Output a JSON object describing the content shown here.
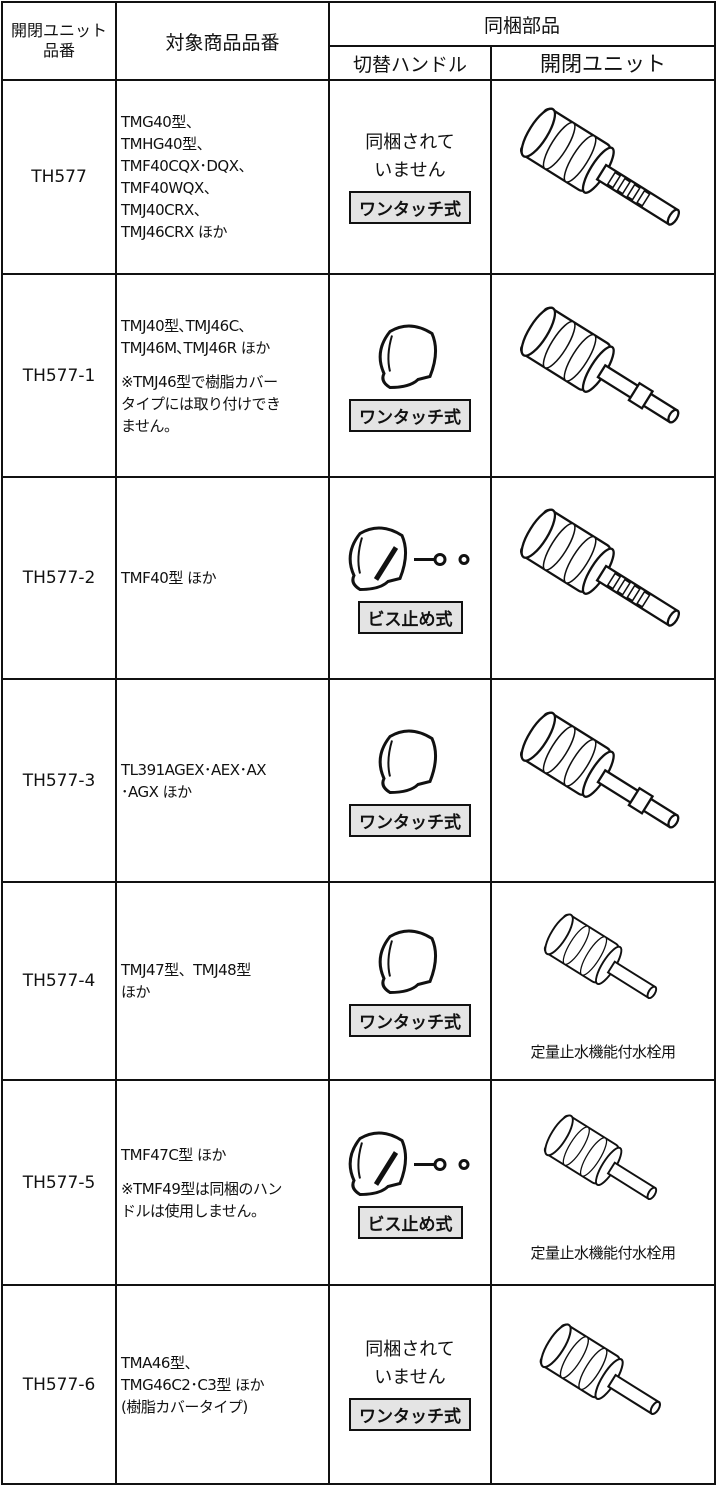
{
  "header": {
    "unit_no": [
      "開閉ユニット",
      "品番"
    ],
    "models": "対象商品品番",
    "included": "同梱部品",
    "handle": "切替ハンドル",
    "unit": "開閉ユニット"
  },
  "rows": [
    {
      "unit_no": "TH577",
      "models": [
        "TMG40型、",
        "TMHG40型、",
        "TMF40CQX･DQX、",
        "TMF40WQX、",
        "TMJ40CRX、",
        "TMJ46CRX ほか"
      ],
      "handle_text": [
        "同梱されて",
        "いません"
      ],
      "handle_type": "ワンタッチ式"
    },
    {
      "unit_no": "TH577-1",
      "models": [
        "TMJ40型､TMJ46C､",
        "TMJ46M､TMJ46R ほか"
      ],
      "note": [
        "※TMJ46型で樹脂カバー",
        "タイプには取り付けでき",
        "ません。"
      ],
      "handle_type": "ワンタッチ式"
    },
    {
      "unit_no": "TH577-2",
      "models": [
        "TMF40型 ほか"
      ],
      "handle_type": "ビス止め式"
    },
    {
      "unit_no": "TH577-3",
      "models": [
        "TL391AGEX･AEX･AX",
        "･AGX ほか"
      ],
      "handle_type": "ワンタッチ式"
    },
    {
      "unit_no": "TH577-4",
      "models": [
        "TMJ47型、TMJ48型",
        "ほか"
      ],
      "handle_type": "ワンタッチ式",
      "unit_note": "定量止水機能付水栓用"
    },
    {
      "unit_no": "TH577-5",
      "models": [
        "TMF47C型 ほか"
      ],
      "note": [
        "※TMF49型は同梱のハン",
        "ドルは使用しません。"
      ],
      "handle_type": "ビス止め式",
      "unit_note": "定量止水機能付水栓用"
    },
    {
      "unit_no": "TH577-6",
      "models": [
        "TMA46型、",
        "TMG46C2･C3型 ほか",
        "(樹脂カバータイプ)"
      ],
      "handle_text": [
        "同梱されて",
        "いません"
      ],
      "handle_type": "ワンタッチ式"
    }
  ]
}
